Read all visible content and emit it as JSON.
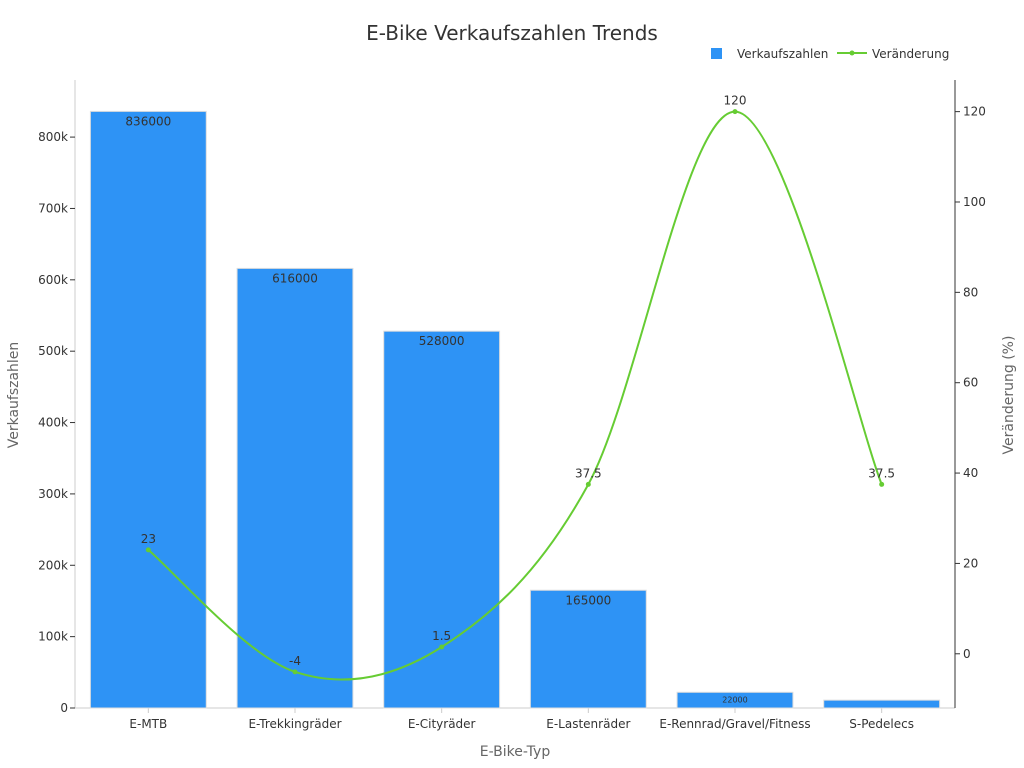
{
  "chart_data": {
    "type": "bar",
    "title": "E-Bike Verkaufszahlen Trends",
    "xlabel": "E-Bike-Typ",
    "ylabel": "Verkaufszahlen",
    "y2label": "Veränderung (%)",
    "categories": [
      "E-MTB",
      "E-Trekkingräder",
      "E-Cityräder",
      "E-Lastenräder",
      "E-Rennrad/Gravel/Fitness",
      "S-Pedelecs"
    ],
    "series": [
      {
        "name": "Verkaufszahlen",
        "type": "bar",
        "axis": "left",
        "color": "#2E93F5",
        "values": [
          836000,
          616000,
          528000,
          165000,
          22000,
          11000
        ],
        "labels": [
          "836000",
          "616000",
          "528000",
          "165000",
          "22000",
          ""
        ]
      },
      {
        "name": "Veränderung",
        "type": "line",
        "axis": "right",
        "smooth": true,
        "color": "#66CC33",
        "values": [
          23,
          -4,
          1.5,
          37.5,
          120,
          37.5
        ],
        "labels": [
          "23",
          "-4",
          "1.5",
          "37.5",
          "120",
          "37.5"
        ]
      }
    ],
    "ylim": [
      0,
      880000
    ],
    "y_ticks": [
      0,
      100000,
      200000,
      300000,
      400000,
      500000,
      600000,
      700000,
      800000
    ],
    "y_tick_labels": [
      "0",
      "100k",
      "200k",
      "300k",
      "400k",
      "500k",
      "600k",
      "700k",
      "800k"
    ],
    "y2lim": [
      -12,
      127
    ],
    "y2_ticks": [
      0,
      20,
      40,
      60,
      80,
      100,
      120
    ],
    "y2_tick_labels": [
      "0",
      "20",
      "40",
      "60",
      "80",
      "100",
      "120"
    ],
    "legend_position": "top-right",
    "grid": false
  }
}
